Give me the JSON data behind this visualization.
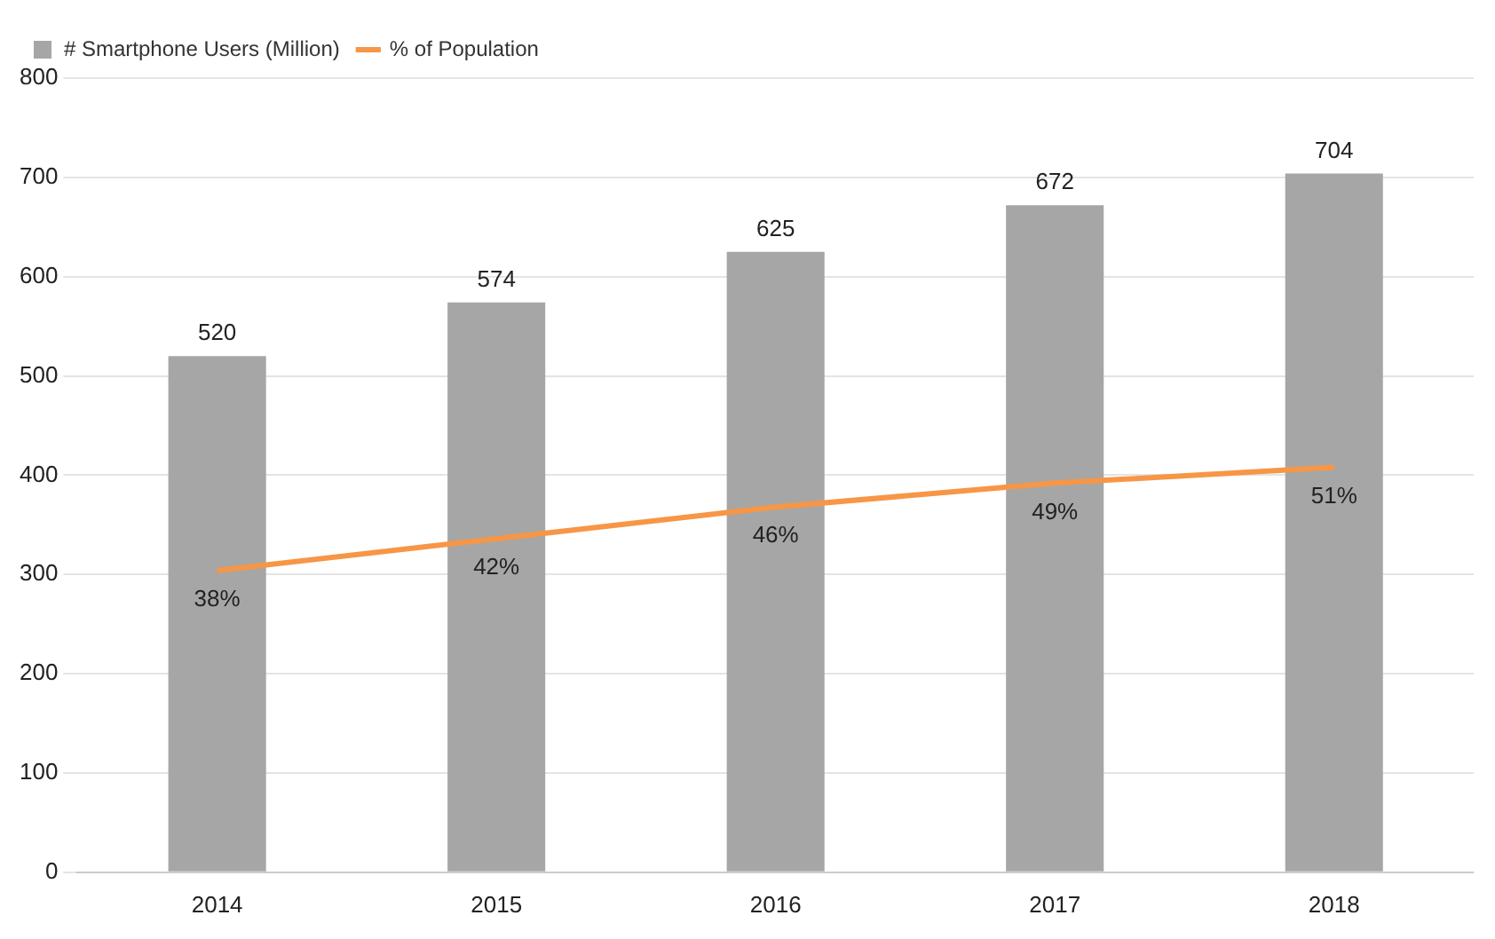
{
  "chart_data": {
    "type": "bar",
    "categories": [
      "2014",
      "2015",
      "2016",
      "2017",
      "2018"
    ],
    "series": [
      {
        "name": "# Smartphone Users (Million)",
        "color": "#a6a6a6",
        "values": [
          520,
          574,
          625,
          672,
          704
        ],
        "value_labels": [
          "520",
          "574",
          "625",
          "672",
          "704"
        ]
      },
      {
        "name": "% of Population",
        "type": "line",
        "axis": "y2",
        "color": "#f79646",
        "values": [
          38,
          42,
          46,
          49,
          51
        ],
        "value_labels": [
          "38%",
          "42%",
          "46%",
          "49%",
          "51%"
        ]
      }
    ],
    "ylim": [
      0,
      800
    ],
    "yticks": [
      0,
      100,
      200,
      300,
      400,
      500,
      600,
      700,
      800
    ],
    "y2lim": [
      0,
      100
    ],
    "grid": "y",
    "legend": "top left",
    "marker": "none"
  }
}
